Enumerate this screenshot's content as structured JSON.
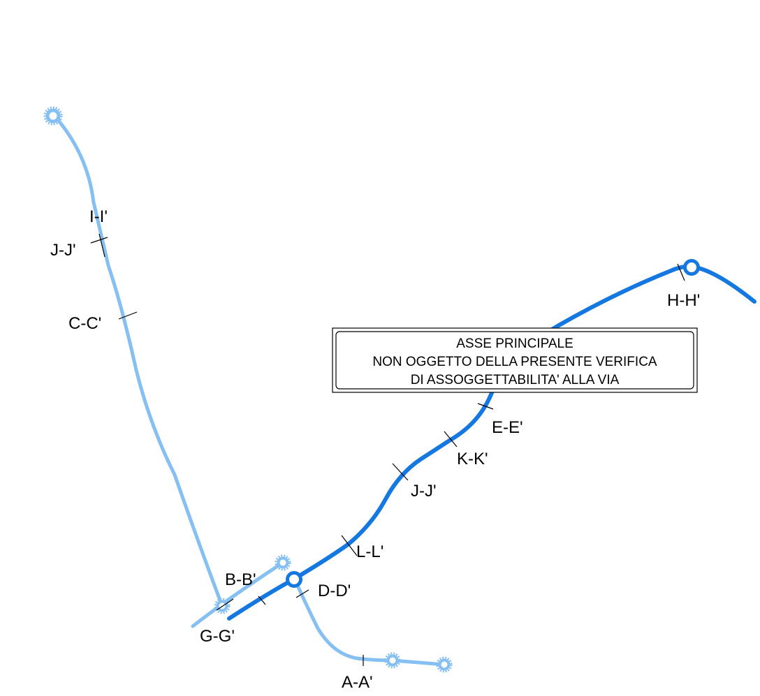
{
  "colors": {
    "main_axis": "#1478e0",
    "branch": "#86bff2",
    "text": "#000000",
    "background": "#ffffff"
  },
  "note_box": {
    "line1": "ASSE PRINCIPALE",
    "line2": "NON OGGETTO DELLA PRESENTE VERIFICA",
    "line3": "DI ASSOGGETTABILITA' ALLA VIA"
  },
  "sections": {
    "a": "A-A'",
    "b": "B-B'",
    "c": "C-C'",
    "d": "D-D'",
    "e": "E-E'",
    "g": "G-G'",
    "h": "H-H'",
    "i": "I-I'",
    "j_branch": "J-J'",
    "j_main": "J-J'",
    "k": "K-K'",
    "l": "L-L'"
  }
}
